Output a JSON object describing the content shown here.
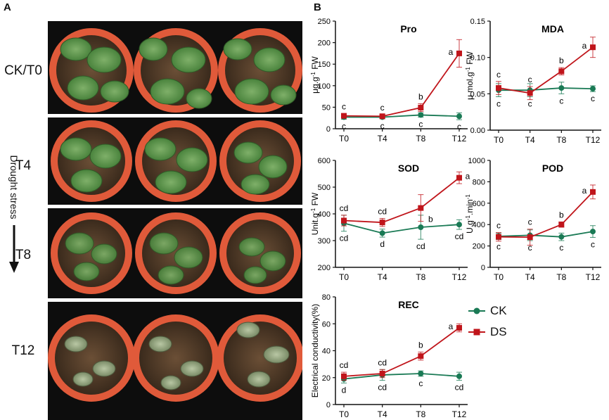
{
  "panel_a": {
    "letter": "A",
    "row_labels": [
      "CK/T0",
      "T4",
      "T8",
      "T12"
    ],
    "arrow_label": "Drought stress"
  },
  "panel_b": {
    "letter": "B"
  },
  "legend": {
    "ck": "CK",
    "ds": "DS",
    "ck_color": "#1a7a55",
    "ds_color": "#c0151b"
  },
  "chart_data": [
    {
      "type": "line",
      "title": "Pro",
      "ylabel": "μg.g-1 FW",
      "ylim": [
        0,
        250
      ],
      "yticks": [
        0,
        50,
        100,
        150,
        200,
        250
      ],
      "ytick_labels": [
        "0",
        "50",
        "100",
        "150",
        "200",
        "250"
      ],
      "categories": [
        "T0",
        "T4",
        "T8",
        "T12"
      ],
      "series": [
        {
          "name": "CK",
          "values": [
            27,
            27,
            32,
            29
          ],
          "errors": [
            5,
            4,
            5,
            8
          ],
          "labels": [
            "c",
            "c",
            "c",
            "c"
          ]
        },
        {
          "name": "DS",
          "values": [
            30,
            29,
            49,
            175
          ],
          "errors": [
            5,
            4,
            9,
            32
          ],
          "labels": [
            "c",
            "c",
            "b",
            "a"
          ]
        }
      ]
    },
    {
      "type": "line",
      "title": "MDA",
      "ylabel": "μ mol.g-1 FW",
      "ylim": [
        0,
        0.15
      ],
      "yticks": [
        0,
        0.05,
        0.1,
        0.15
      ],
      "ytick_labels": [
        "0.00",
        "0.05",
        "0.10",
        "0.15"
      ],
      "categories": [
        "T0",
        "T4",
        "T8",
        "T12"
      ],
      "series": [
        {
          "name": "CK",
          "values": [
            0.055,
            0.055,
            0.058,
            0.057
          ],
          "errors": [
            0.009,
            0.009,
            0.008,
            0.004
          ],
          "labels": [
            "c",
            "c",
            "c",
            "c"
          ]
        },
        {
          "name": "DS",
          "values": [
            0.058,
            0.051,
            0.081,
            0.114
          ],
          "errors": [
            0.009,
            0.009,
            0.005,
            0.014
          ],
          "labels": [
            "c",
            "c",
            "b",
            "a"
          ]
        }
      ]
    },
    {
      "type": "line",
      "title": "SOD",
      "ylabel": "Unit.g-1 FW",
      "ylim": [
        200,
        600
      ],
      "yticks": [
        200,
        300,
        400,
        500,
        600
      ],
      "ytick_labels": [
        "200",
        "300",
        "400",
        "500",
        "600"
      ],
      "categories": [
        "T0",
        "T4",
        "T8",
        "T12"
      ],
      "series": [
        {
          "name": "CK",
          "values": [
            365,
            328,
            350,
            360
          ],
          "errors": [
            30,
            15,
            45,
            18
          ],
          "labels": [
            "cd",
            "d",
            "cd",
            "cd"
          ]
        },
        {
          "name": "DS",
          "values": [
            375,
            368,
            422,
            535
          ],
          "errors": [
            20,
            15,
            50,
            22
          ],
          "labels": [
            "cd",
            "cd",
            "b",
            "a"
          ]
        }
      ]
    },
    {
      "type": "line",
      "title": "POD",
      "ylabel": "U.g-1.min-1",
      "ylim": [
        0,
        1000
      ],
      "yticks": [
        0,
        200,
        400,
        600,
        800,
        1000
      ],
      "ytick_labels": [
        "0",
        "200",
        "400",
        "600",
        "800",
        "1000"
      ],
      "categories": [
        "T0",
        "T4",
        "T8",
        "T12"
      ],
      "series": [
        {
          "name": "CK",
          "values": [
            290,
            300,
            285,
            335
          ],
          "errors": [
            30,
            50,
            35,
            55
          ],
          "labels": [
            "c",
            "c",
            "c",
            "c"
          ]
        },
        {
          "name": "DS",
          "values": [
            285,
            282,
            400,
            705
          ],
          "errors": [
            40,
            75,
            25,
            65
          ],
          "labels": [
            "c",
            "c",
            "b",
            "a"
          ]
        }
      ]
    },
    {
      "type": "line",
      "title": "REC",
      "ylabel": "Electrical conductivity(%)",
      "ylim": [
        0,
        80
      ],
      "yticks": [
        0,
        20,
        40,
        60,
        80
      ],
      "ytick_labels": [
        "0",
        "20",
        "40",
        "60",
        "80"
      ],
      "categories": [
        "T0",
        "T4",
        "T8",
        "T12"
      ],
      "series": [
        {
          "name": "CK",
          "values": [
            19,
            22,
            23,
            21
          ],
          "errors": [
            3,
            4,
            2,
            3
          ],
          "labels": [
            "d",
            "cd",
            "c",
            "cd"
          ]
        },
        {
          "name": "DS",
          "values": [
            21,
            23,
            36,
            57
          ],
          "errors": [
            3,
            3,
            3,
            3
          ],
          "labels": [
            "cd",
            "cd",
            "b",
            "a"
          ]
        }
      ]
    }
  ]
}
